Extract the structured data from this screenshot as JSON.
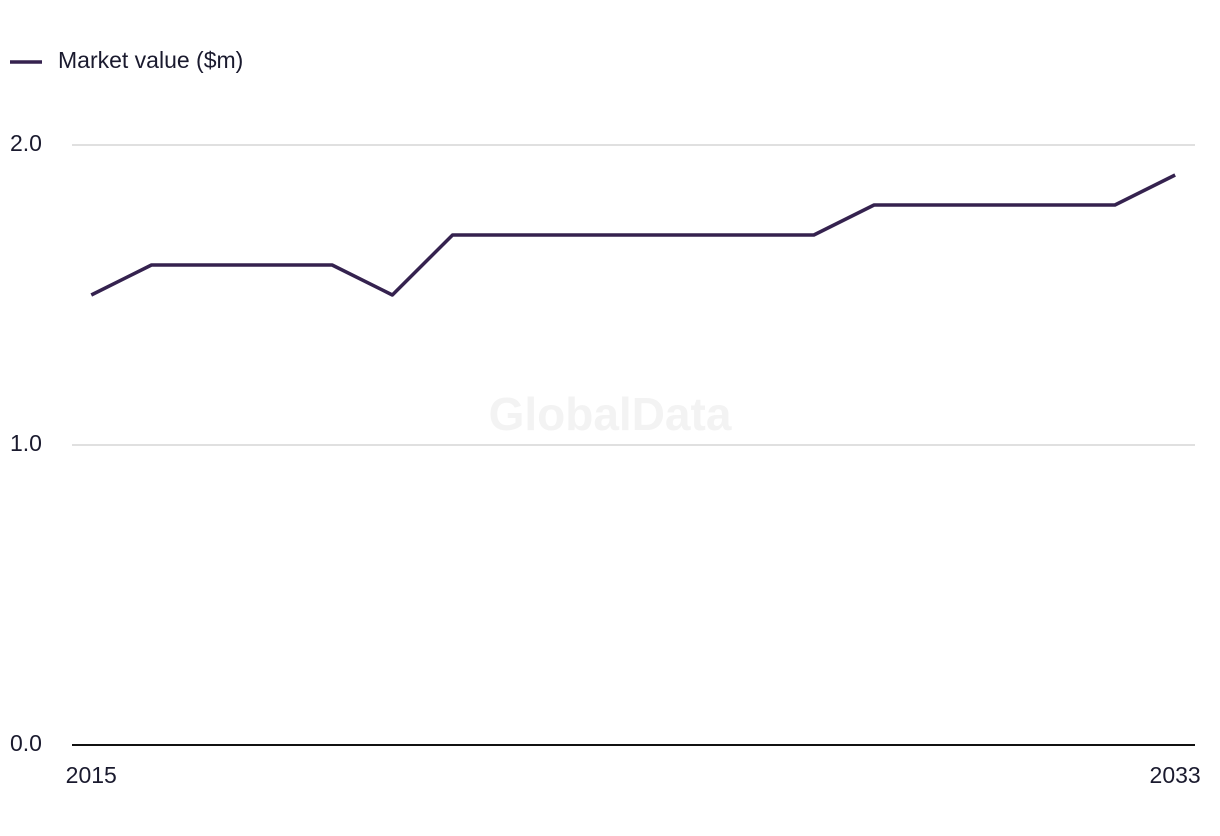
{
  "chart_data": {
    "type": "line",
    "x": [
      2015,
      2016,
      2017,
      2018,
      2019,
      2020,
      2021,
      2022,
      2023,
      2024,
      2025,
      2026,
      2027,
      2028,
      2029,
      2030,
      2031,
      2032,
      2033
    ],
    "series": [
      {
        "name": "Market value ($m)",
        "color": "#35224f",
        "values": [
          1.5,
          1.6,
          1.6,
          1.6,
          1.6,
          1.5,
          1.7,
          1.7,
          1.7,
          1.7,
          1.7,
          1.7,
          1.7,
          1.8,
          1.8,
          1.8,
          1.8,
          1.8,
          1.9
        ]
      }
    ],
    "xlim": [
      2014.68,
      2033.33
    ],
    "xticks": [
      2015,
      2033
    ],
    "ylim": [
      0,
      2.0
    ],
    "yticks": [
      {
        "value": 0,
        "label": "0.0"
      },
      {
        "value": 1,
        "label": "1.0"
      },
      {
        "value": 2,
        "label": "2.0"
      }
    ],
    "grid": true,
    "legend": "top-left",
    "watermark": "GlobalData"
  }
}
